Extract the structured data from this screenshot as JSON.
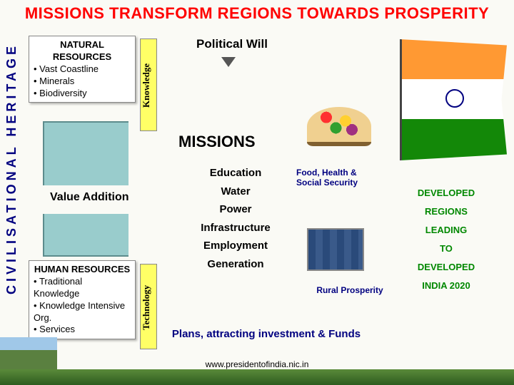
{
  "title": "MISSIONS TRANSFORM REGIONS TOWARDS PROSPERITY",
  "heritage_label": "CIVILISATIONAL HERITAGE",
  "natural": {
    "title": "NATURAL RESOURCES",
    "items": [
      "Vast Coastline",
      "Minerals",
      "Biodiversity"
    ]
  },
  "human": {
    "title": "HUMAN RESOURCES",
    "items": [
      "Traditional Knowledge",
      "Knowledge Intensive Org.",
      "Services"
    ]
  },
  "knowledge_label": "Knowledge",
  "technology_label": "Technology",
  "value_addition": "Value  Addition",
  "political_will": "Political Will",
  "missions_heading": "MISSIONS",
  "mission_items": [
    "Education",
    "Water",
    "Power",
    "Infrastructure",
    "Employment",
    "Generation"
  ],
  "food_label": "Food, Health & Social Security",
  "rural_label": "Rural Prosperity",
  "right_col": [
    "DEVELOPED",
    "REGIONS",
    "LEADING",
    "TO",
    "DEVELOPED",
    "INDIA 2020"
  ],
  "plans": "Plans, attracting investment & Funds",
  "footer": "www.presidentofindia.nic.in",
  "colors": {
    "title": "#ff0000",
    "heritage": "#000080",
    "yellow_bar": "#ffff66",
    "teal_bar": "#99cccc",
    "green_text": "#008800",
    "navy_text": "#000080"
  }
}
